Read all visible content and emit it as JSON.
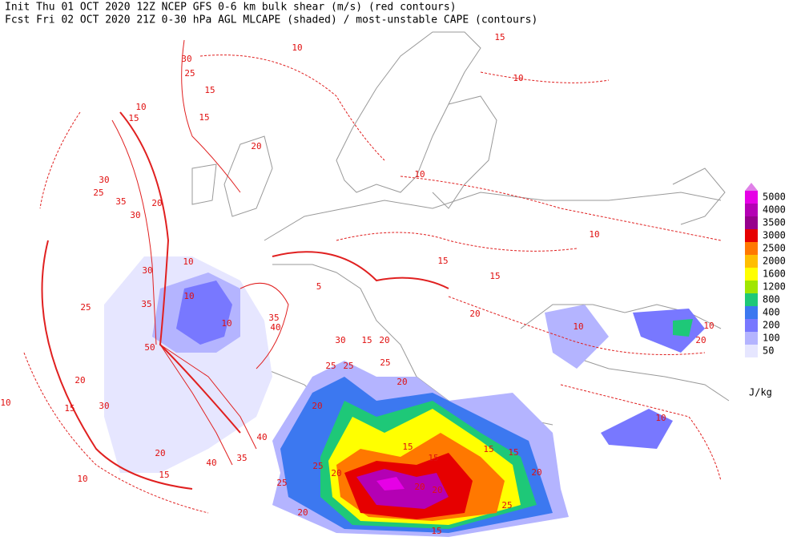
{
  "header": {
    "line1": "Init  Thu 01 OCT 2020 12Z   NCEP GFS 0-6 km bulk shear (m/s) (red contours)",
    "line2": "Fcst Fri 02 OCT 2020 21Z   0-30 hPa AGL MLCAPE (shaded) / most-unstable CAPE (contours)"
  },
  "legend": {
    "levels": [
      {
        "value": 5000,
        "color": "#e600e6"
      },
      {
        "value": 4000,
        "color": "#b400b4"
      },
      {
        "value": 3500,
        "color": "#96008c"
      },
      {
        "value": 3000,
        "color": "#e60000"
      },
      {
        "value": 2500,
        "color": "#ff7800"
      },
      {
        "value": 2000,
        "color": "#ffbe00"
      },
      {
        "value": 1600,
        "color": "#ffff00"
      },
      {
        "value": 1200,
        "color": "#a0e600"
      },
      {
        "value": 800,
        "color": "#1ec878"
      },
      {
        "value": 400,
        "color": "#3c78f0"
      },
      {
        "value": 200,
        "color": "#7878ff"
      },
      {
        "value": 100,
        "color": "#b4b4ff"
      },
      {
        "value": 50,
        "color": "#e6e6ff"
      }
    ],
    "unit": "J/kg"
  },
  "contour_labels": [
    10,
    25,
    30,
    15,
    15,
    20,
    10,
    15,
    10,
    15,
    30,
    25,
    35,
    20,
    30,
    30,
    35,
    25,
    10,
    10,
    50,
    10,
    5,
    35,
    40,
    30,
    15,
    20,
    25,
    25,
    25,
    20,
    20,
    10,
    10,
    20,
    10,
    20,
    15,
    10,
    30,
    40,
    40,
    35,
    25,
    20,
    25,
    20,
    20,
    20,
    15,
    15,
    15,
    15,
    20,
    25,
    15,
    20,
    15,
    10,
    20,
    15,
    15,
    10,
    10
  ]
}
